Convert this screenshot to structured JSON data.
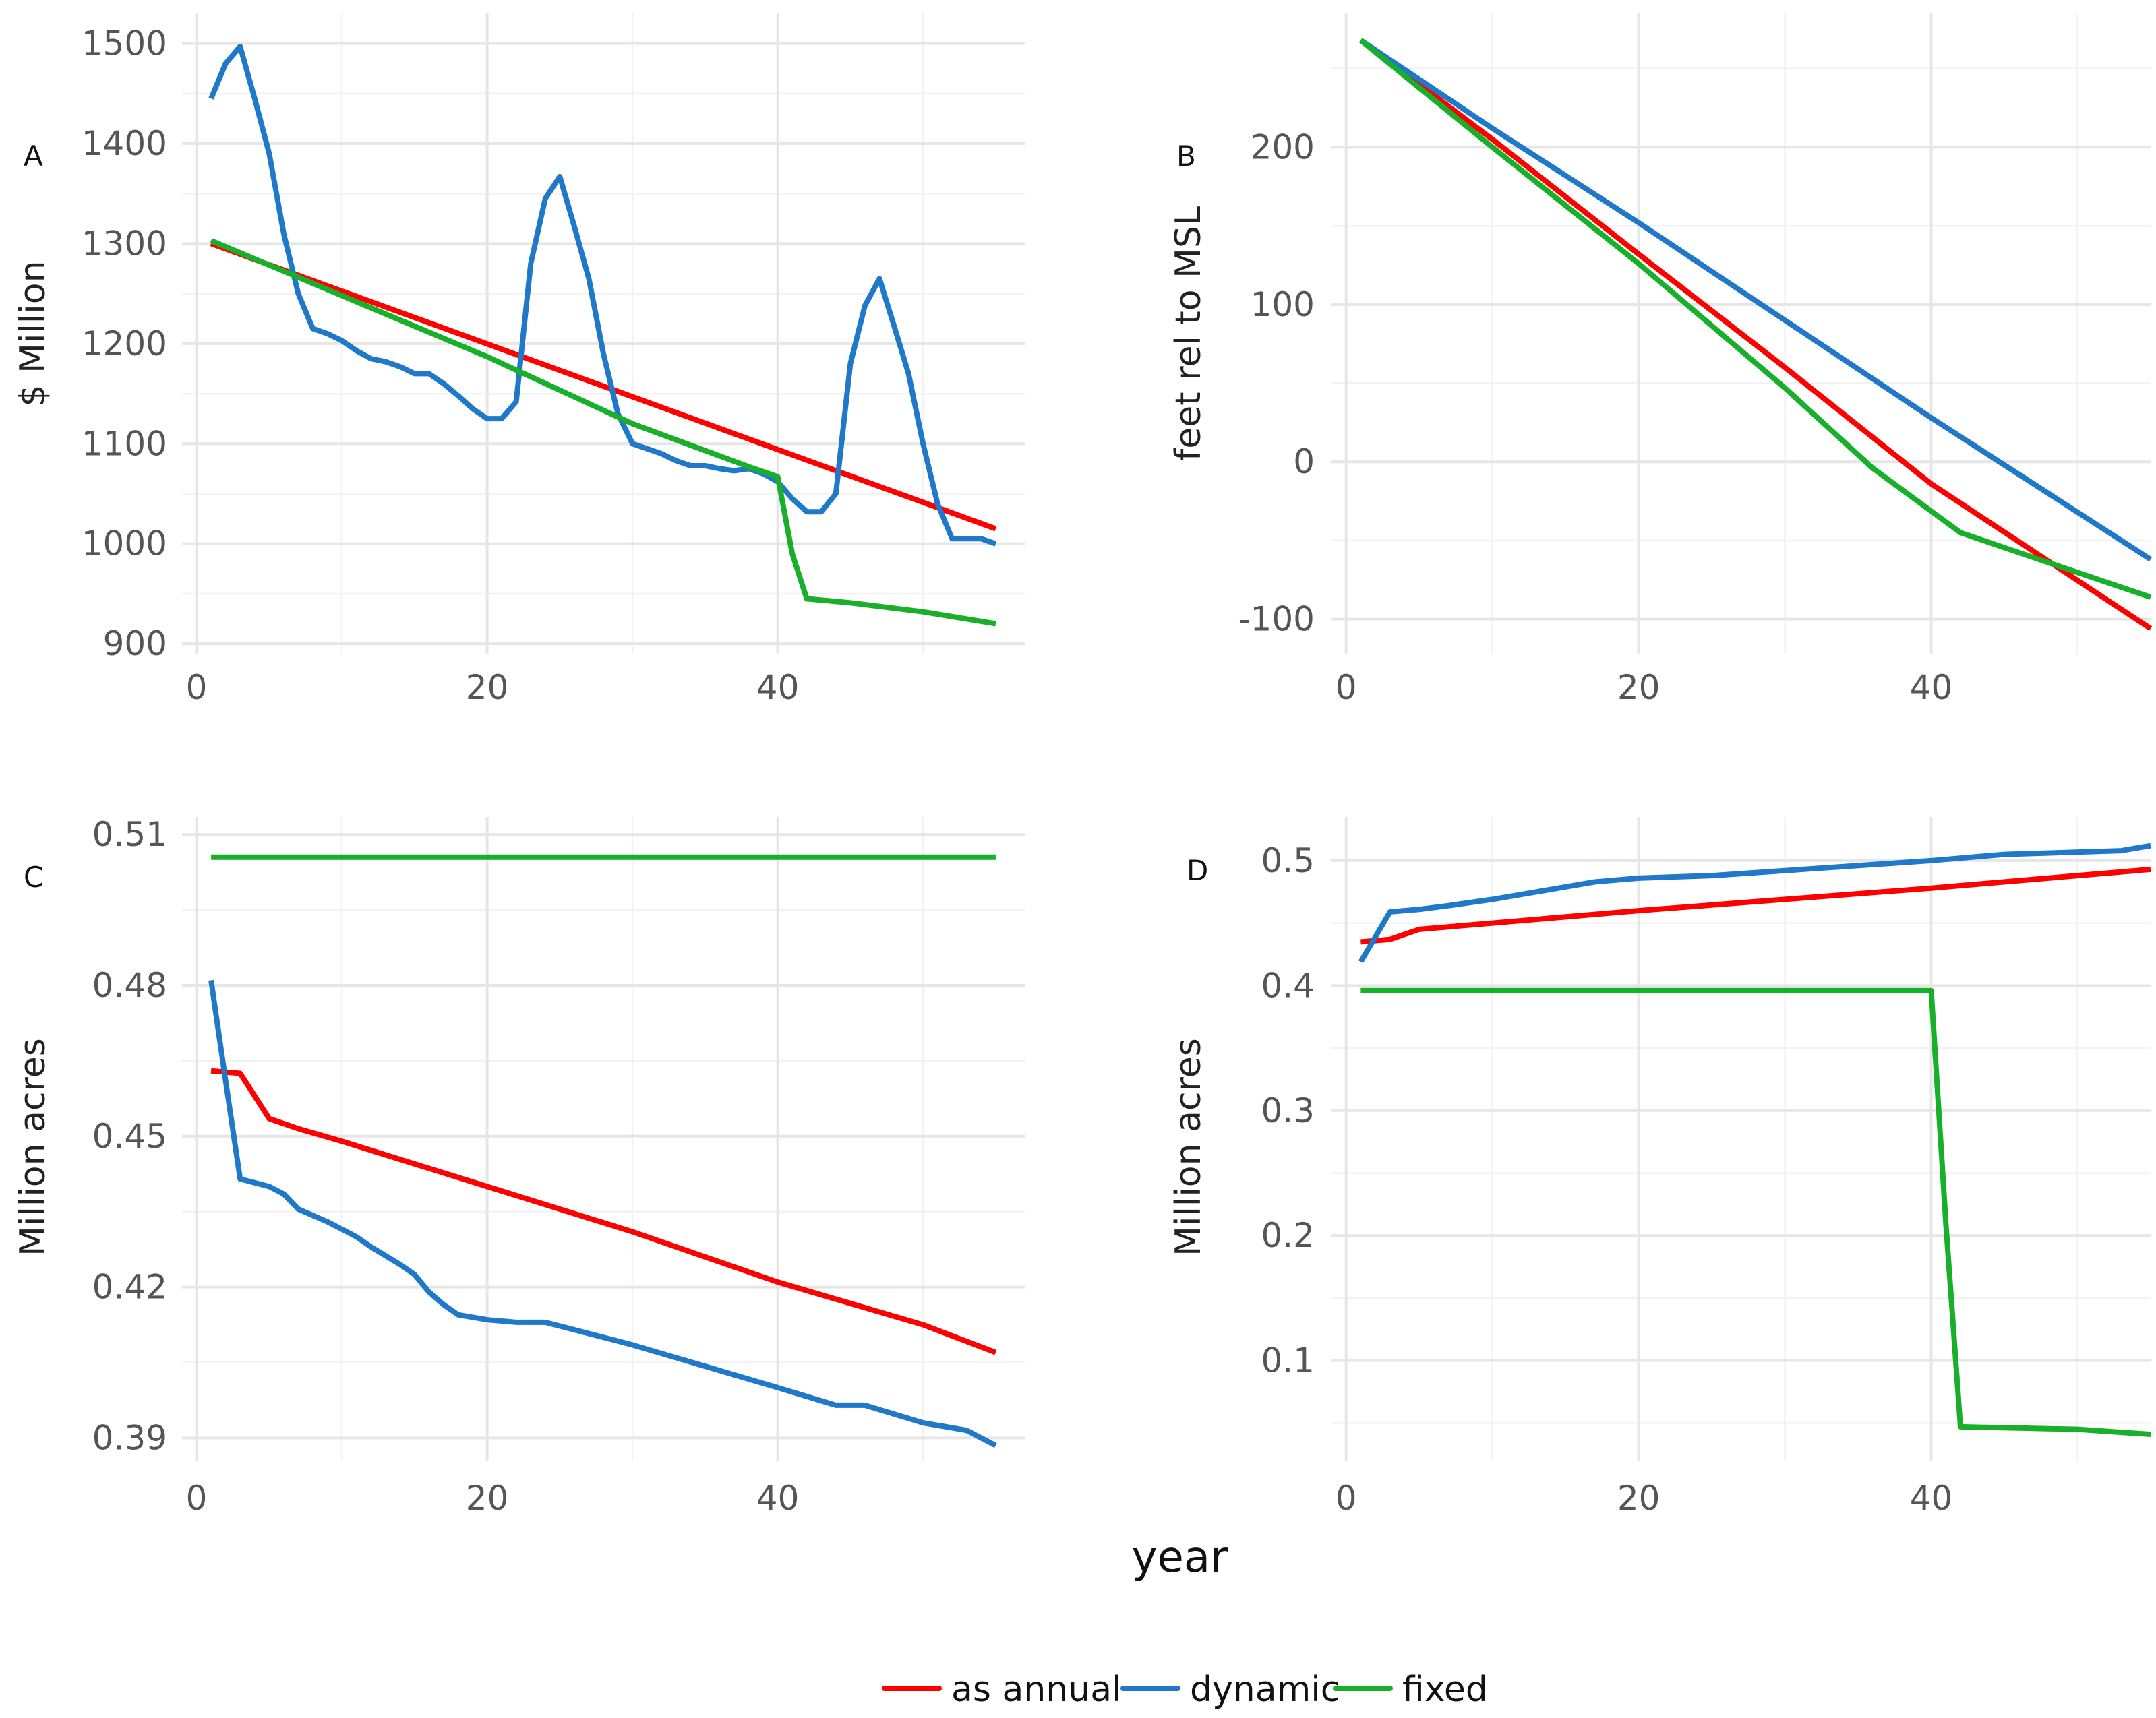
{
  "figure": {
    "shared_xlabel": "year",
    "legend": [
      {
        "label": "as annual",
        "color": "#ff0000"
      },
      {
        "label": "dynamic",
        "color": "#1f78c8"
      },
      {
        "label": "fixed",
        "color": "#18b02a"
      }
    ]
  },
  "chart_data": [
    {
      "panel": "A",
      "type": "line",
      "title": "",
      "xlabel": "",
      "ylabel": "$ Million",
      "xlim": [
        -1,
        57
      ],
      "ylim": [
        890,
        1530
      ],
      "xticks": [
        0,
        20,
        40
      ],
      "yticks": [
        900,
        1000,
        1100,
        1200,
        1300,
        1400,
        1500
      ],
      "ytick_labels": [
        "900",
        "1000",
        "1100",
        "1200",
        "1300",
        "1400",
        "1500"
      ],
      "series": [
        {
          "name": "as annual",
          "color": "#ff0000",
          "points": [
            [
              1,
              1300
            ],
            [
              55,
              1015
            ]
          ]
        },
        {
          "name": "dynamic",
          "color": "#1f78c8",
          "points": [
            [
              1,
              1445
            ],
            [
              2,
              1480
            ],
            [
              3,
              1497
            ],
            [
              4,
              1445
            ],
            [
              5,
              1390
            ],
            [
              6,
              1310
            ],
            [
              7,
              1250
            ],
            [
              8,
              1215
            ],
            [
              9,
              1210
            ],
            [
              10,
              1203
            ],
            [
              11,
              1193
            ],
            [
              12,
              1185
            ],
            [
              13,
              1182
            ],
            [
              14,
              1177
            ],
            [
              15,
              1170
            ],
            [
              16,
              1170
            ],
            [
              17,
              1160
            ],
            [
              18,
              1148
            ],
            [
              19,
              1135
            ],
            [
              20,
              1125
            ],
            [
              21,
              1125
            ],
            [
              22,
              1142
            ],
            [
              23,
              1280
            ],
            [
              24,
              1345
            ],
            [
              25,
              1367
            ],
            [
              26,
              1317
            ],
            [
              27,
              1265
            ],
            [
              28,
              1190
            ],
            [
              29,
              1130
            ],
            [
              30,
              1100
            ],
            [
              31,
              1095
            ],
            [
              32,
              1090
            ],
            [
              33,
              1083
            ],
            [
              34,
              1078
            ],
            [
              35,
              1078
            ],
            [
              36,
              1075
            ],
            [
              37,
              1073
            ],
            [
              38,
              1075
            ],
            [
              39,
              1070
            ],
            [
              40,
              1062
            ],
            [
              41,
              1045
            ],
            [
              42,
              1032
            ],
            [
              43,
              1032
            ],
            [
              44,
              1050
            ],
            [
              45,
              1180
            ],
            [
              46,
              1238
            ],
            [
              47,
              1265
            ],
            [
              48,
              1218
            ],
            [
              49,
              1170
            ],
            [
              50,
              1100
            ],
            [
              51,
              1040
            ],
            [
              52,
              1005
            ],
            [
              53,
              1005
            ],
            [
              54,
              1005
            ],
            [
              55,
              1000
            ]
          ]
        },
        {
          "name": "fixed",
          "color": "#18b02a",
          "points": [
            [
              1,
              1303
            ],
            [
              10,
              1248
            ],
            [
              20,
              1187
            ],
            [
              30,
              1120
            ],
            [
              38,
              1077
            ],
            [
              40,
              1067
            ],
            [
              41,
              990
            ],
            [
              42,
              945
            ],
            [
              45,
              941
            ],
            [
              50,
              932
            ],
            [
              55,
              920
            ]
          ]
        }
      ]
    },
    {
      "panel": "B",
      "type": "line",
      "title": "",
      "xlabel": "",
      "ylabel": "feet rel to MSL",
      "xlim": [
        -1,
        55
      ],
      "ylim": [
        -122,
        285
      ],
      "xticks": [
        0,
        20,
        40
      ],
      "yticks": [
        -100,
        0,
        100,
        200
      ],
      "ytick_labels": [
        "-100",
        "0",
        "100",
        "200"
      ],
      "series": [
        {
          "name": "as annual",
          "color": "#ff0000",
          "points": [
            [
              1,
              268
            ],
            [
              10,
              205
            ],
            [
              20,
              132
            ],
            [
              30,
              60
            ],
            [
              40,
              -14
            ],
            [
              55,
              -106
            ]
          ]
        },
        {
          "name": "dynamic",
          "color": "#1f78c8",
          "points": [
            [
              1,
              268
            ],
            [
              10,
              212
            ],
            [
              20,
              152
            ],
            [
              30,
              90
            ],
            [
              40,
              28
            ],
            [
              50,
              -32
            ],
            [
              55,
              -62
            ]
          ]
        },
        {
          "name": "fixed",
          "color": "#18b02a",
          "points": [
            [
              1,
              268
            ],
            [
              10,
              200
            ],
            [
              20,
              126
            ],
            [
              30,
              47
            ],
            [
              36,
              -4
            ],
            [
              42,
              -45
            ],
            [
              48,
              -64
            ],
            [
              55,
              -86
            ]
          ]
        }
      ]
    },
    {
      "panel": "C",
      "type": "line",
      "title": "",
      "xlabel": "",
      "ylabel": "Million acres",
      "xlim": [
        -1,
        57
      ],
      "ylim": [
        0.3855,
        0.5135
      ],
      "xticks": [
        0,
        20,
        40
      ],
      "yticks": [
        0.39,
        0.42,
        0.45,
        0.48,
        0.51
      ],
      "ytick_labels": [
        "0.39",
        "0.42",
        "0.45",
        "0.48",
        "0.51"
      ],
      "series": [
        {
          "name": "as annual",
          "color": "#ff0000",
          "points": [
            [
              1,
              0.463
            ],
            [
              3,
              0.4625
            ],
            [
              5,
              0.4535
            ],
            [
              7,
              0.4515
            ],
            [
              10,
              0.449
            ],
            [
              20,
              0.44
            ],
            [
              30,
              0.431
            ],
            [
              40,
              0.421
            ],
            [
              50,
              0.4125
            ],
            [
              55,
              0.407
            ]
          ]
        },
        {
          "name": "dynamic",
          "color": "#1f78c8",
          "points": [
            [
              1,
              0.481
            ],
            [
              2,
              0.461
            ],
            [
              3,
              0.4415
            ],
            [
              5,
              0.44
            ],
            [
              6,
              0.4385
            ],
            [
              7,
              0.4355
            ],
            [
              9,
              0.433
            ],
            [
              11,
              0.43
            ],
            [
              12,
              0.428
            ],
            [
              14,
              0.4245
            ],
            [
              15,
              0.4225
            ],
            [
              16,
              0.419
            ],
            [
              17,
              0.4165
            ],
            [
              18,
              0.4145
            ],
            [
              20,
              0.4135
            ],
            [
              22,
              0.413
            ],
            [
              24,
              0.413
            ],
            [
              30,
              0.4085
            ],
            [
              40,
              0.4
            ],
            [
              44,
              0.3965
            ],
            [
              46,
              0.3965
            ],
            [
              50,
              0.393
            ],
            [
              53,
              0.3915
            ],
            [
              55,
              0.3885
            ]
          ]
        },
        {
          "name": "fixed",
          "color": "#18b02a",
          "points": [
            [
              1,
              0.5055
            ],
            [
              55,
              0.5055
            ]
          ]
        }
      ]
    },
    {
      "panel": "D",
      "type": "line",
      "title": "",
      "xlabel": "",
      "ylabel": "Million acres",
      "xlim": [
        -1,
        55
      ],
      "ylim": [
        0.02,
        0.535
      ],
      "xticks": [
        0,
        20,
        40
      ],
      "yticks": [
        0.1,
        0.2,
        0.3,
        0.4,
        0.5
      ],
      "ytick_labels": [
        "0.1",
        "0.2",
        "0.3",
        "0.4",
        "0.5"
      ],
      "series": [
        {
          "name": "as annual",
          "color": "#ff0000",
          "points": [
            [
              1,
              0.435
            ],
            [
              3,
              0.437
            ],
            [
              5,
              0.445
            ],
            [
              10,
              0.45
            ],
            [
              20,
              0.46
            ],
            [
              30,
              0.469
            ],
            [
              40,
              0.478
            ],
            [
              50,
              0.488
            ],
            [
              55,
              0.493
            ]
          ]
        },
        {
          "name": "dynamic",
          "color": "#1f78c8",
          "points": [
            [
              1,
              0.419
            ],
            [
              3,
              0.459
            ],
            [
              5,
              0.461
            ],
            [
              7,
              0.464
            ],
            [
              10,
              0.469
            ],
            [
              13,
              0.475
            ],
            [
              17,
              0.483
            ],
            [
              20,
              0.486
            ],
            [
              25,
              0.488
            ],
            [
              30,
              0.492
            ],
            [
              40,
              0.5
            ],
            [
              45,
              0.505
            ],
            [
              53,
              0.508
            ],
            [
              55,
              0.512
            ]
          ]
        },
        {
          "name": "fixed",
          "color": "#18b02a",
          "points": [
            [
              1,
              0.396
            ],
            [
              40,
              0.396
            ],
            [
              41,
              0.21
            ],
            [
              42,
              0.047
            ],
            [
              46,
              0.046
            ],
            [
              50,
              0.045
            ],
            [
              55,
              0.041
            ]
          ]
        }
      ]
    }
  ]
}
